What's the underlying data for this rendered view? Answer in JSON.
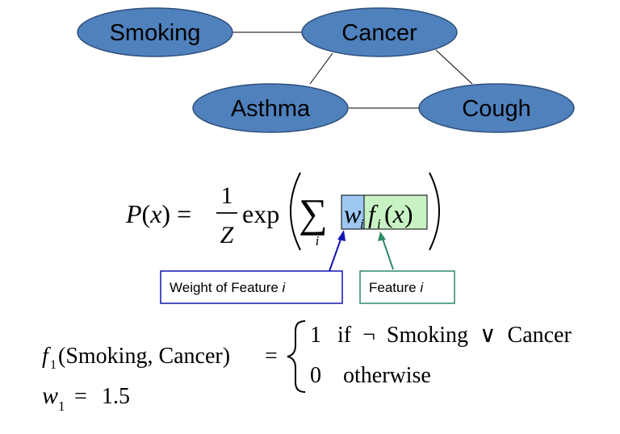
{
  "nodes": [
    {
      "id": "smoking",
      "label": "Smoking"
    },
    {
      "id": "cancer",
      "label": "Cancer"
    },
    {
      "id": "asthma",
      "label": "Asthma"
    },
    {
      "id": "cough",
      "label": "Cough"
    }
  ],
  "edges": [
    {
      "from": "smoking",
      "to": "cancer"
    },
    {
      "from": "cancer",
      "to": "asthma"
    },
    {
      "from": "cancer",
      "to": "cough"
    },
    {
      "from": "asthma",
      "to": "cough"
    }
  ],
  "formula": {
    "lhs": "P(x) =",
    "frac_num": "1",
    "frac_den": "Z",
    "exp": "exp",
    "sum": "∑",
    "sum_index": "i",
    "weight": "w",
    "weight_sub": "i",
    "feature": "f",
    "feature_sub": "i",
    "feature_arg": "(x)"
  },
  "annotations": {
    "weight_label": "Weight of Feature ",
    "weight_label_var": "i",
    "feature_label": "Feature ",
    "feature_label_var": "i"
  },
  "feature_def": {
    "lhs_f": "f",
    "lhs_sub": "1",
    "lhs_args": "(Smoking, Cancer)",
    "equals": "=",
    "case1_value": "1",
    "case1_cond": "if  ¬  Smoking  ∨  Cancer",
    "case2_value": "0",
    "case2_cond": "otherwise"
  },
  "weight_def": {
    "w": "w",
    "sub": "1",
    "equals": "=",
    "value": "1.5"
  },
  "colors": {
    "node_fill": "#4f81bd",
    "weight_highlight": "#9ec7f2",
    "feature_highlight": "#c9f2c4",
    "weight_accent": "#1414b4",
    "feature_accent": "#2e8b64"
  }
}
